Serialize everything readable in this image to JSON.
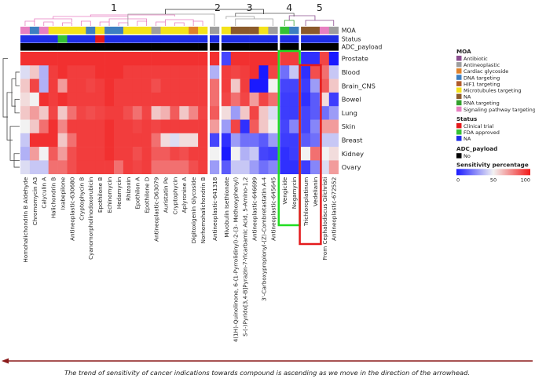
{
  "chart_data": {
    "type": "heatmap",
    "cluster_labels": [
      "1",
      "2",
      "3",
      "4",
      "5"
    ],
    "compounds": [
      "Homohalichondrin B Aldehyde",
      "Chromomycin A3",
      "Calyculin A",
      "Halichondrin B",
      "Ixabepilone",
      "Antineoplastic-630680",
      "Cryptophycin B",
      "Cyanomorpholinodoxorubicin",
      "Epothilone B",
      "Echinomycin",
      "Hedamycin",
      "Rhizoxin",
      "Epothilon A",
      "Epothilone D",
      "Antineoplastic-D63079",
      "Auristatin Pe",
      "Cryptophycin",
      "Aplyronine A",
      "Digitoxigenin Glycoside",
      "Norhomohalichondrin B",
      "Antineoplastic-641318",
      "Mivobulin Isethionate",
      "4(1H)-Quinolinone, 6-(1-Pyrrolidinyl)-2-(3- Methoxyphenyl)",
      "S-(-)Pyrido[3,4-B]Pyrazin-7-Ylcarbamic Acid, 5-Amino-1,2",
      "Antineoplastic-646699",
      "3'-Carboxypropionyl-(Z)-Combretastatin A-4",
      "Antineoplastic-645645",
      "Vengicide",
      "Nogamycin",
      "Trichloroplatinum",
      "Vedelianin",
      "From Cephalodiscus Gilchristi",
      "Antineoplastic-672552"
    ],
    "indications": [
      "Prostate",
      "Blood",
      "Brain_CNS",
      "Bowel",
      "Lung",
      "Skin",
      "Breast",
      "Kidney",
      "Ovary"
    ],
    "values": [
      [
        95,
        95,
        95,
        95,
        95,
        95,
        95,
        95,
        95,
        95,
        95,
        95,
        95,
        95,
        95,
        95,
        95,
        95,
        95,
        95,
        95,
        10,
        95,
        95,
        95,
        95,
        95,
        92,
        92,
        5,
        5,
        90,
        0
      ],
      [
        45,
        60,
        35,
        92,
        95,
        92,
        92,
        92,
        95,
        95,
        95,
        92,
        92,
        92,
        92,
        92,
        92,
        92,
        92,
        92,
        35,
        92,
        90,
        92,
        95,
        0,
        90,
        20,
        40,
        5,
        88,
        80,
        40
      ],
      [
        60,
        90,
        35,
        92,
        70,
        92,
        92,
        90,
        92,
        95,
        92,
        92,
        92,
        92,
        88,
        92,
        92,
        92,
        92,
        92,
        80,
        92,
        60,
        92,
        0,
        0,
        50,
        10,
        10,
        8,
        30,
        85,
        60
      ],
      [
        55,
        50,
        95,
        92,
        95,
        92,
        92,
        92,
        92,
        95,
        92,
        92,
        92,
        92,
        92,
        92,
        92,
        92,
        92,
        92,
        80,
        90,
        80,
        90,
        70,
        90,
        80,
        8,
        8,
        5,
        15,
        55,
        8
      ],
      [
        60,
        70,
        60,
        90,
        60,
        80,
        90,
        88,
        90,
        92,
        92,
        88,
        80,
        90,
        60,
        65,
        85,
        60,
        75,
        90,
        85,
        55,
        30,
        60,
        90,
        60,
        45,
        8,
        8,
        10,
        15,
        20,
        30
      ],
      [
        50,
        60,
        80,
        95,
        75,
        92,
        92,
        92,
        92,
        95,
        92,
        92,
        90,
        92,
        90,
        92,
        92,
        92,
        92,
        92,
        70,
        30,
        90,
        5,
        85,
        60,
        50,
        10,
        25,
        10,
        25,
        70,
        70
      ],
      [
        40,
        95,
        95,
        95,
        60,
        80,
        92,
        92,
        92,
        95,
        92,
        92,
        92,
        92,
        80,
        55,
        45,
        55,
        55,
        92,
        10,
        5,
        30,
        20,
        20,
        15,
        30,
        8,
        8,
        15,
        20,
        40,
        40
      ],
      [
        35,
        70,
        50,
        85,
        70,
        88,
        92,
        92,
        92,
        95,
        92,
        92,
        88,
        92,
        85,
        85,
        90,
        88,
        92,
        92,
        50,
        0,
        50,
        35,
        40,
        10,
        8,
        5,
        8,
        50,
        80,
        50,
        55
      ],
      [
        45,
        40,
        40,
        80,
        80,
        88,
        92,
        92,
        92,
        92,
        80,
        92,
        90,
        92,
        80,
        80,
        80,
        80,
        88,
        92,
        30,
        15,
        40,
        40,
        30,
        20,
        25,
        5,
        5,
        8,
        25,
        45,
        70
      ]
    ],
    "annotation_rows": [
      "MOA",
      "Status",
      "ADC_payload"
    ],
    "moa_row": [
      "Signaling pathway targeting",
      "DNA targeting",
      "Signaling pathway targeting",
      "Microtubules targeting",
      "Microtubules targeting",
      "Microtubules targeting",
      "Microtubules targeting",
      "DNA targeting",
      "Microtubules targeting",
      "DNA targeting",
      "DNA targeting",
      "Microtubules targeting",
      "Microtubules targeting",
      "Microtubules targeting",
      "Antineoplastic",
      "Microtubules targeting",
      "Microtubules targeting",
      "Microtubules targeting",
      "Cardiac glycoside",
      "Microtubules targeting",
      "Antineoplastic",
      "Microtubules targeting",
      "NA",
      "NA",
      "NA",
      "Microtubules targeting",
      "Antineoplastic",
      "FDA approved",
      "DNA targeting",
      "NA",
      "NA",
      "Signaling pathway targeting",
      "Antineoplastic"
    ],
    "status_row": [
      "NA",
      "NA",
      "NA",
      "NA",
      "FDA approved",
      "NA",
      "NA",
      "NA",
      "Clinical trial",
      "NA",
      "NA",
      "NA",
      "NA",
      "NA",
      "NA",
      "NA",
      "NA",
      "NA",
      "NA",
      "NA",
      "NA",
      "NA",
      "NA",
      "NA",
      "NA",
      "NA",
      "NA",
      "NA",
      "NA",
      "NA",
      "NA",
      "NA",
      "NA"
    ],
    "legend": {
      "moa_title": "MOA",
      "moa": [
        {
          "name": "Antibiotic",
          "color": "#8b4d8f"
        },
        {
          "name": "Antineoplastic",
          "color": "#9e9e9e"
        },
        {
          "name": "Cardiac glycoside",
          "color": "#e0822a"
        },
        {
          "name": "DNA targeting",
          "color": "#3d7fc1"
        },
        {
          "name": "HIF1 targeting",
          "color": "#b05a2a"
        },
        {
          "name": "Microtubules targeting",
          "color": "#f4e21a"
        },
        {
          "name": "NA",
          "color": "#8b5a2b"
        },
        {
          "name": "RNA targeting",
          "color": "#33a02c"
        },
        {
          "name": "Signaling pathway targeting",
          "color": "#e77fc1"
        }
      ],
      "status_title": "Status",
      "status": [
        {
          "name": "Clinical trial",
          "color": "#e41a1c"
        },
        {
          "name": "FDA approved",
          "color": "#35c235"
        },
        {
          "name": "NA",
          "color": "#1f2ee6"
        }
      ],
      "adc_title": "ADC_payload",
      "adc": [
        {
          "name": "No",
          "color": "#000000"
        }
      ],
      "sensitivity_title": "Sensitivity percentage",
      "sensitivity_ticks": [
        0,
        50,
        100
      ]
    },
    "highlight_boxes": [
      {
        "color": "#22dd22",
        "col_start": 27,
        "col_end": 28,
        "extends_to_labels": true
      },
      {
        "color": "#e41a1c",
        "col_start": 29,
        "col_end": 30,
        "extends_to_labels": true
      }
    ],
    "caption": "The trend of sensitivity of cancer indications towards compound is ascending as we move in the direction of the arrowhead.",
    "colors": {
      "low": "#1a1aff",
      "mid": "#f2f2f2",
      "high": "#f21a1a",
      "arrow": "#8b1a1a"
    }
  }
}
